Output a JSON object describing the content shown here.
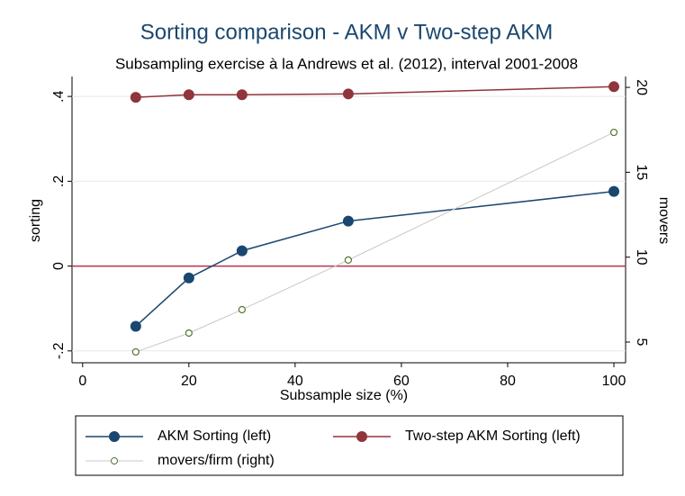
{
  "chart_data": {
    "type": "line",
    "title": "Sorting comparison - AKM v Two-step AKM",
    "subtitle": "Subsampling exercise à la Andrews et al. (2012), interval 2001-2008",
    "x_label": "Subsample size (%)",
    "y_label": "sorting",
    "y2_label": "movers",
    "x": [
      10,
      20,
      30,
      50,
      100
    ],
    "series": [
      {
        "name": "AKM Sorting (left)",
        "color": "#1a476f",
        "line_color": "#1a476f",
        "marker": "filled",
        "values": [
          -0.142,
          -0.028,
          0.036,
          0.106,
          0.176
        ]
      },
      {
        "name": "Two-step AKM Sorting (left)",
        "color": "#90353b",
        "line_color": "#90353b",
        "marker": "filled",
        "values": [
          0.398,
          0.404,
          0.404,
          0.406,
          0.423
        ]
      },
      {
        "name": "movers/firm (right)",
        "color": "#55752f",
        "line_color": "#c8c8c8",
        "marker": "hollow",
        "axis": "y2",
        "values": [
          4.42,
          5.53,
          6.91,
          9.83,
          17.35
        ]
      }
    ],
    "xlim": [
      -2,
      102.2
    ],
    "xticks": [
      0,
      20,
      40,
      60,
      80,
      100
    ],
    "ylim": [
      -0.228,
      0.447
    ],
    "yticks": [
      {
        "value": -0.2,
        "label": "-.2"
      },
      0,
      {
        "value": 0.2,
        "label": ".2"
      },
      {
        "value": 0.4,
        "label": ".4"
      }
    ],
    "y2lim": [
      3.78,
      20.64
    ],
    "y2ticks": [
      5,
      10,
      15,
      20
    ],
    "grid": true,
    "reference_line": {
      "value": 0,
      "color": "#c0304a"
    },
    "legend": "bottom"
  }
}
